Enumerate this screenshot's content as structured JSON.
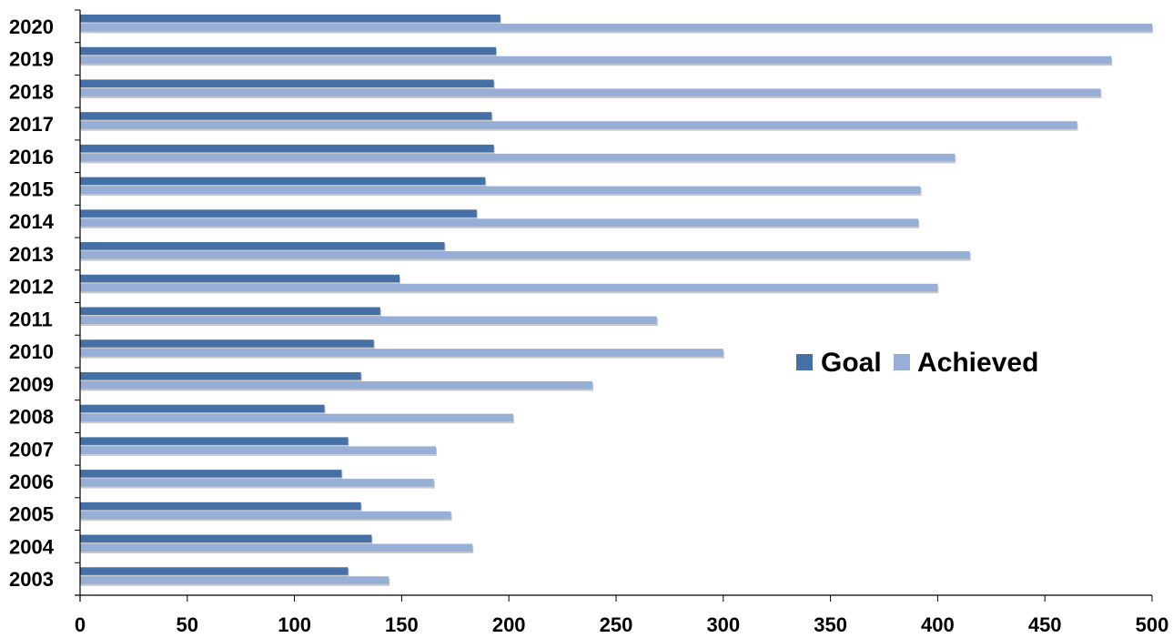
{
  "chart_data": {
    "type": "bar",
    "orientation": "horizontal",
    "categories": [
      "2020",
      "2019",
      "2018",
      "2017",
      "2016",
      "2015",
      "2014",
      "2013",
      "2012",
      "2011",
      "2010",
      "2009",
      "2008",
      "2007",
      "2006",
      "2005",
      "2004",
      "2003"
    ],
    "series": [
      {
        "name": "Goal",
        "color": "#4470A6",
        "values": [
          196,
          194,
          193,
          192,
          193,
          189,
          185,
          170,
          149,
          140,
          137,
          131,
          114,
          125,
          122,
          131,
          136,
          125
        ]
      },
      {
        "name": "Achieved",
        "color": "#97AED6",
        "values": [
          500,
          481,
          476,
          465,
          408,
          392,
          391,
          415,
          400,
          269,
          300,
          239,
          202,
          166,
          165,
          173,
          183,
          144
        ]
      }
    ],
    "xticks": [
      "0",
      "50",
      "100",
      "150",
      "200",
      "250",
      "300",
      "350",
      "400",
      "450",
      "500"
    ],
    "xlim": [
      0,
      500
    ],
    "title": "",
    "xlabel": "",
    "ylabel": "",
    "grid": false,
    "legend_position": "center-right"
  }
}
